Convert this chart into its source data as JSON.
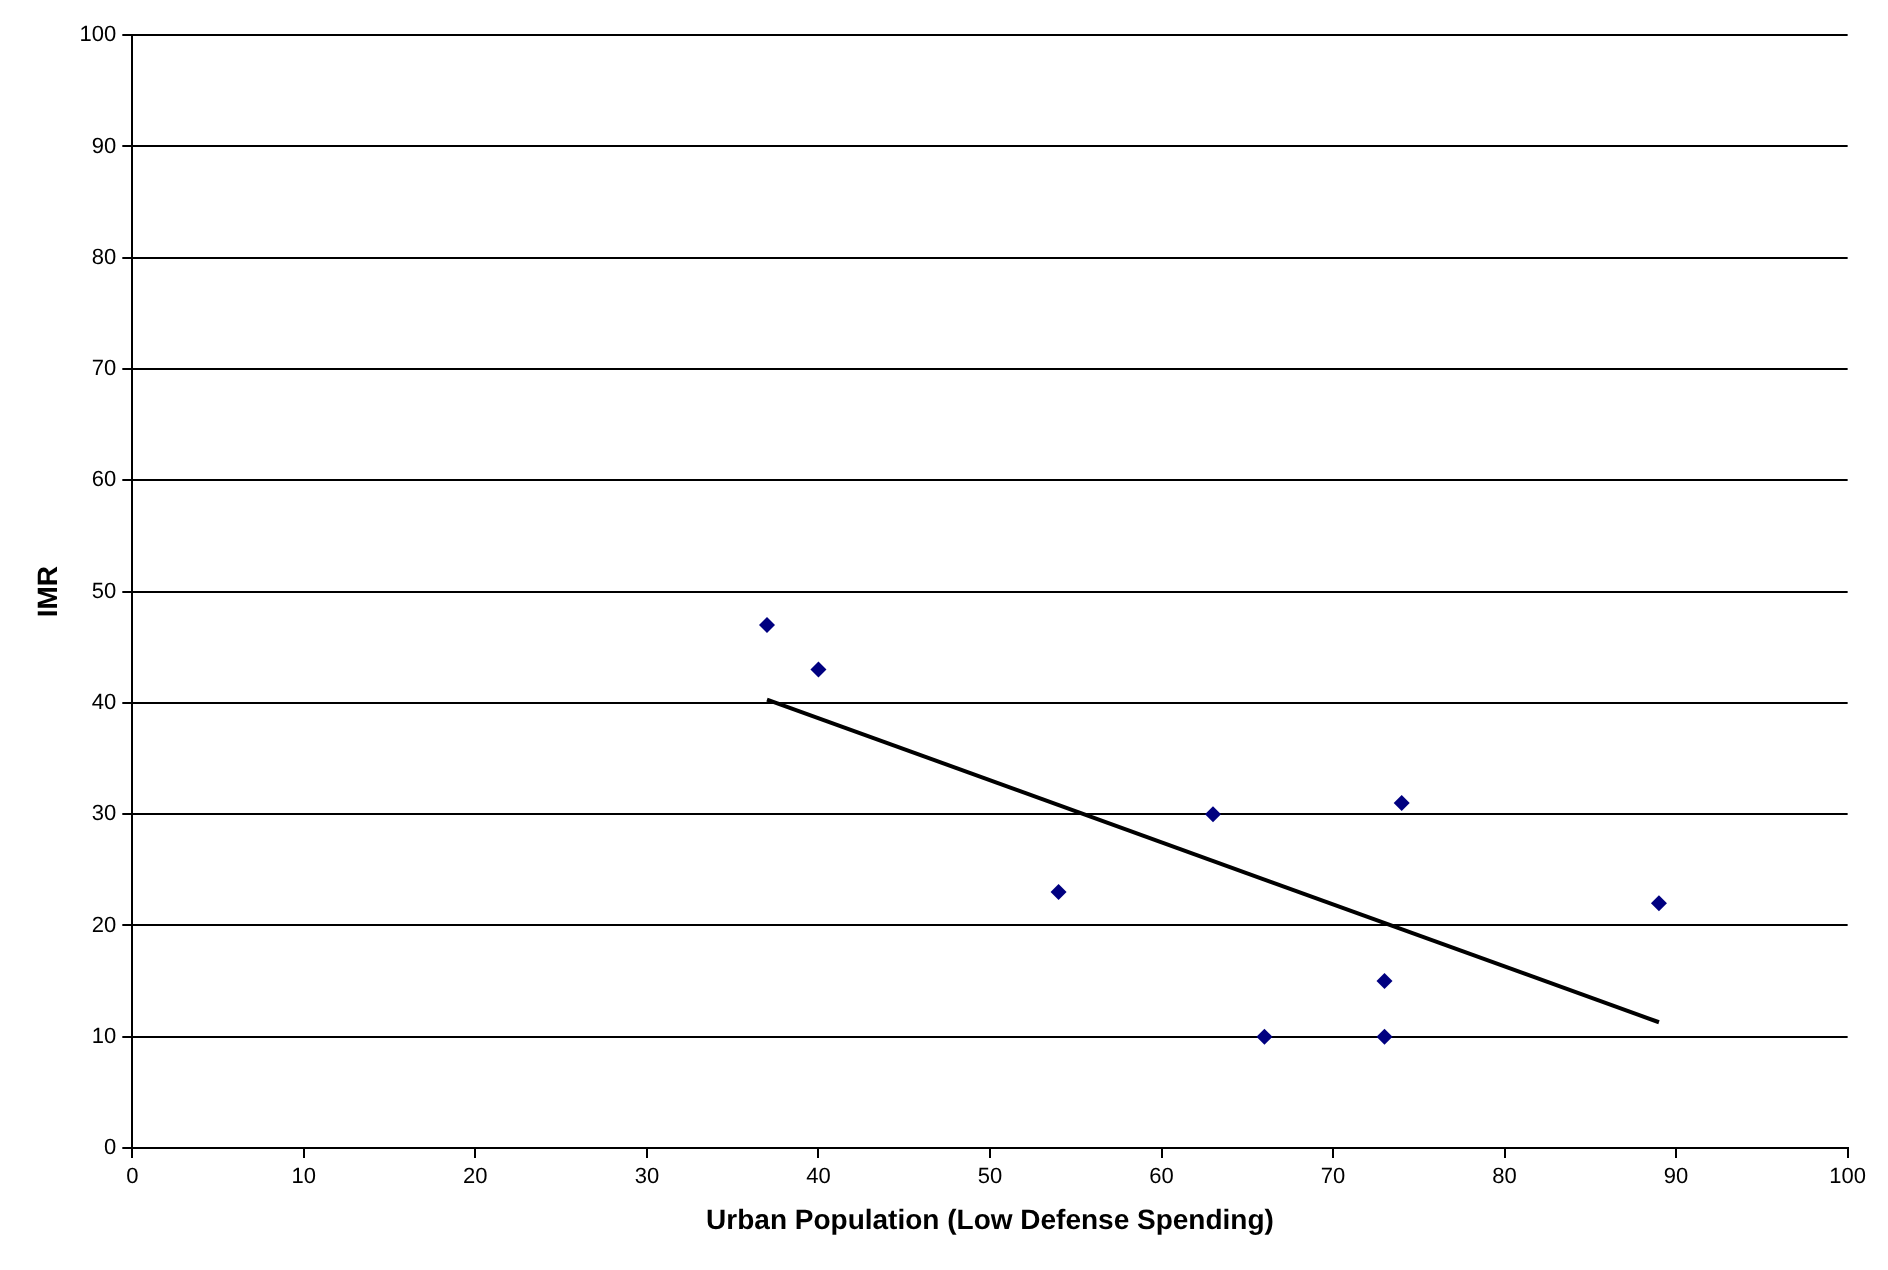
{
  "chart_data": {
    "type": "scatter",
    "xlabel": "Urban Population (Low Defense Spending)",
    "ylabel": "IMR",
    "series": [
      {
        "type": "scatter",
        "color": "#000080",
        "marker": "diamond",
        "x": [
          37,
          40,
          54,
          63,
          66,
          73,
          73,
          74,
          89
        ],
        "values": [
          47,
          43,
          23,
          30,
          10,
          15,
          10,
          31,
          22
        ]
      },
      {
        "type": "line",
        "color": "#000000",
        "marker": "none",
        "x": [
          37,
          89
        ],
        "values": [
          40.3,
          11.3
        ]
      }
    ],
    "xlim": [
      0,
      100
    ],
    "xticks": [
      0,
      10,
      20,
      30,
      40,
      50,
      60,
      70,
      80,
      90,
      100
    ],
    "ylim": [
      0,
      100
    ],
    "yticks": [
      0,
      10,
      20,
      30,
      40,
      50,
      60,
      70,
      80,
      90,
      100
    ],
    "grid": "y",
    "legend": false
  }
}
